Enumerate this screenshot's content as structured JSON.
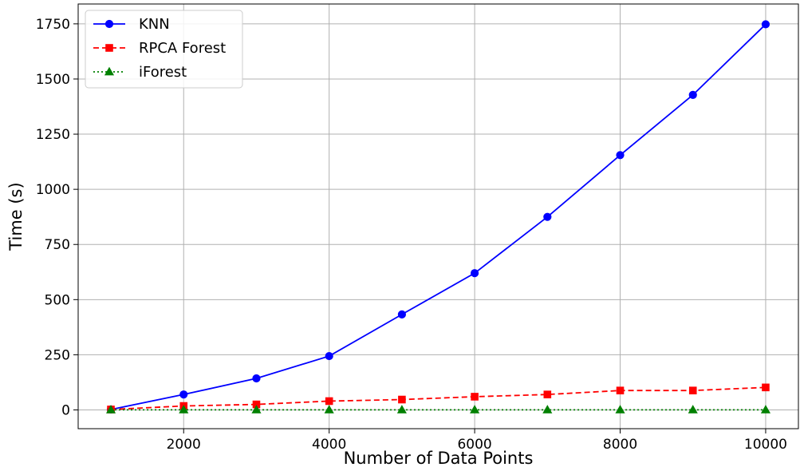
{
  "chart_data": {
    "type": "line",
    "title": "",
    "xlabel": "Number of Data Points",
    "ylabel": "Time (s)",
    "xlim": [
      550,
      10450
    ],
    "ylim": [
      -85,
      1840
    ],
    "xticks": [
      2000,
      4000,
      6000,
      8000,
      10000
    ],
    "yticks": [
      0,
      250,
      500,
      750,
      1000,
      1250,
      1500,
      1750
    ],
    "grid": true,
    "legend_position": "top-left",
    "x": [
      1000,
      2000,
      3000,
      4000,
      5000,
      6000,
      7000,
      8000,
      9000,
      10000
    ],
    "series": [
      {
        "name": "KNN",
        "color": "#0000ff",
        "line_style": "solid",
        "marker": "circle",
        "values": [
          2,
          70,
          143,
          244,
          433,
          620,
          875,
          1155,
          1428,
          1748
        ]
      },
      {
        "name": "RPCA Forest",
        "color": "#ff0000",
        "line_style": "dashed",
        "marker": "square",
        "values": [
          2,
          18,
          25,
          40,
          47,
          60,
          70,
          88,
          88,
          102
        ]
      },
      {
        "name": "iForest",
        "color": "#008000",
        "line_style": "dotted",
        "marker": "triangle",
        "values": [
          0.5,
          0.5,
          0.5,
          0.5,
          0.5,
          0.5,
          0.5,
          0.5,
          0.5,
          0.5
        ]
      }
    ]
  }
}
